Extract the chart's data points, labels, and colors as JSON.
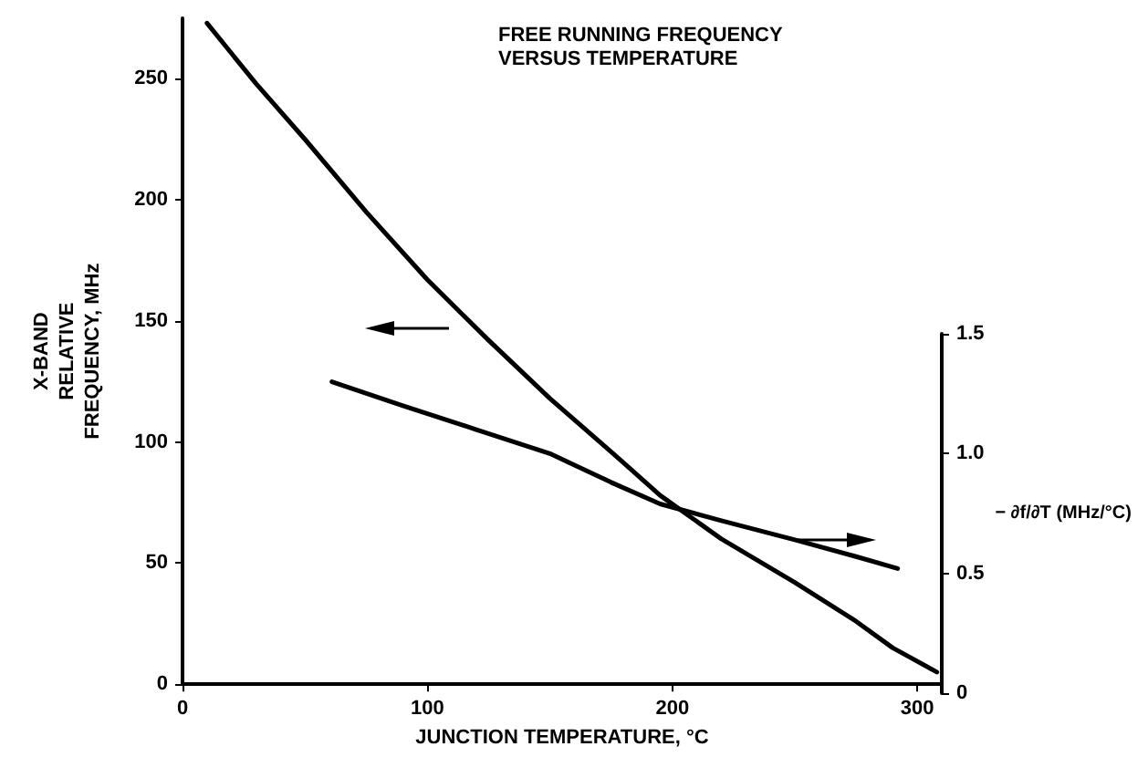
{
  "chart_data": {
    "type": "line",
    "title": "FREE RUNNING FREQUENCY\nVERSUS TEMPERATURE",
    "xlabel": "JUNCTION TEMPERATURE, °C",
    "ylabel": "X-BAND\nRELATIVE\nFREQUENCY, MHz",
    "y2label": "− ∂f/∂T (MHz/°C)",
    "xlim": [
      0,
      310
    ],
    "xticks": [
      0,
      100,
      200,
      300
    ],
    "ylim": [
      0,
      275
    ],
    "yticks": [
      0,
      50,
      100,
      150,
      200,
      250
    ],
    "y2lim": [
      0,
      1.5
    ],
    "y2ticks": [
      0,
      0.5,
      {
        "value": 1,
        "label": "1.0"
      },
      1.5
    ],
    "grid": false,
    "marker": "none",
    "line_style": "solid",
    "series": [
      {
        "color": "#000000",
        "x": [
          10,
          30,
          50,
          75,
          100,
          125,
          150,
          175,
          195,
          220,
          250,
          275,
          290,
          308
        ],
        "values": [
          273,
          248,
          225,
          195,
          167,
          142,
          118,
          96,
          78,
          60,
          42,
          26,
          15,
          5
        ]
      },
      {
        "color": "#000000",
        "axis": "y2",
        "x": [
          61,
          90,
          120,
          150,
          175,
          195,
          220,
          250,
          275,
          292
        ],
        "values": [
          1.3,
          1.2,
          1.1,
          1.0,
          0.88,
          0.79,
          0.72,
          0.64,
          0.57,
          0.52
        ]
      }
    ]
  }
}
